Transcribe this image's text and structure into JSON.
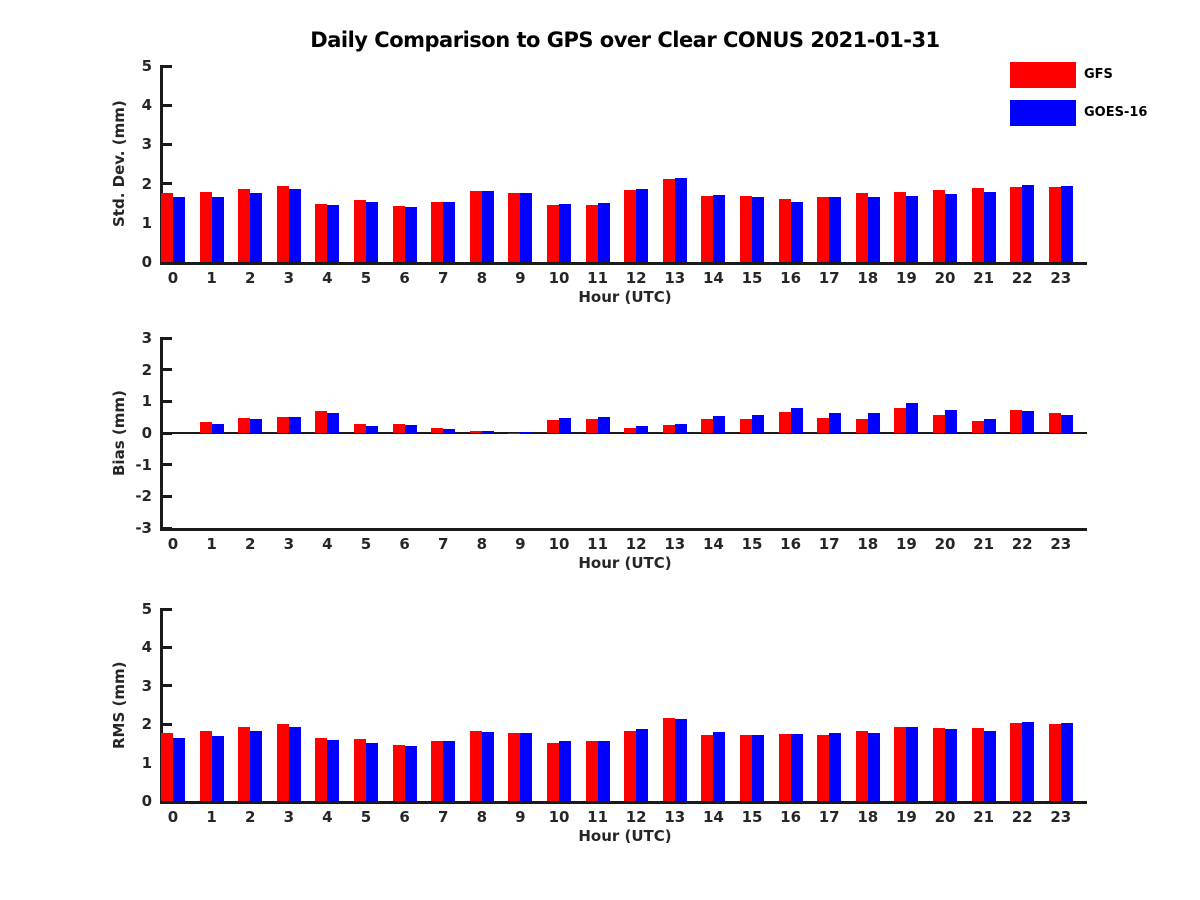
{
  "title": "Daily Comparison to GPS over Clear CONUS 2021-01-31",
  "legend": {
    "items": [
      {
        "label": "GFS",
        "color": "#ff0000"
      },
      {
        "label": "GOES-16",
        "color": "#0000ff"
      }
    ]
  },
  "chart_data": [
    {
      "type": "bar",
      "name": "stddev",
      "title": "Daily Comparison to GPS over Clear CONUS 2021-01-31",
      "xlabel": "Hour (UTC)",
      "ylabel": "Std. Dev. (mm)",
      "ylim": [
        0,
        5
      ],
      "yticks": [
        5,
        4,
        3,
        2,
        1,
        0
      ],
      "grid": false,
      "legend_position": "upper-right-outside",
      "categories": [
        "0",
        "1",
        "2",
        "3",
        "4",
        "5",
        "6",
        "7",
        "8",
        "9",
        "10",
        "11",
        "12",
        "13",
        "14",
        "15",
        "16",
        "17",
        "18",
        "19",
        "20",
        "21",
        "22",
        "23"
      ],
      "series": [
        {
          "name": "GFS",
          "color": "#ff0000",
          "values": [
            1.75,
            1.78,
            1.85,
            1.93,
            1.47,
            1.59,
            1.42,
            1.54,
            1.82,
            1.76,
            1.45,
            1.46,
            1.83,
            2.13,
            1.68,
            1.68,
            1.6,
            1.67,
            1.75,
            1.78,
            1.83,
            1.89,
            1.92,
            1.92
          ]
        },
        {
          "name": "GOES-16",
          "color": "#0000ff",
          "values": [
            1.65,
            1.65,
            1.76,
            1.87,
            1.45,
            1.52,
            1.4,
            1.54,
            1.82,
            1.76,
            1.47,
            1.5,
            1.87,
            2.14,
            1.71,
            1.65,
            1.52,
            1.65,
            1.66,
            1.69,
            1.74,
            1.78,
            1.96,
            1.94
          ]
        }
      ]
    },
    {
      "type": "bar",
      "name": "bias",
      "xlabel": "Hour (UTC)",
      "ylabel": "Bias (mm)",
      "ylim": [
        -3,
        3
      ],
      "yticks": [
        3,
        2,
        1,
        0,
        -1,
        -2,
        -3
      ],
      "grid": false,
      "zero_line": true,
      "categories": [
        "0",
        "1",
        "2",
        "3",
        "4",
        "5",
        "6",
        "7",
        "8",
        "9",
        "10",
        "11",
        "12",
        "13",
        "14",
        "15",
        "16",
        "17",
        "18",
        "19",
        "20",
        "21",
        "22",
        "23"
      ],
      "series": [
        {
          "name": "GFS",
          "color": "#ff0000",
          "values": [
            0.0,
            0.35,
            0.47,
            0.49,
            0.7,
            0.27,
            0.28,
            0.15,
            0.05,
            0.01,
            0.42,
            0.45,
            0.16,
            0.24,
            0.45,
            0.44,
            0.66,
            0.46,
            0.43,
            0.8,
            0.58,
            0.37,
            0.72,
            0.62
          ]
        },
        {
          "name": "GOES-16",
          "color": "#0000ff",
          "values": [
            0.0,
            0.3,
            0.44,
            0.5,
            0.63,
            0.22,
            0.24,
            0.12,
            0.06,
            0.02,
            0.47,
            0.52,
            0.22,
            0.29,
            0.54,
            0.57,
            0.8,
            0.64,
            0.63,
            0.95,
            0.74,
            0.44,
            0.68,
            0.56
          ]
        }
      ]
    },
    {
      "type": "bar",
      "name": "rms",
      "xlabel": "Hour (UTC)",
      "ylabel": "RMS (mm)",
      "ylim": [
        0,
        5
      ],
      "yticks": [
        5,
        4,
        3,
        2,
        1,
        0
      ],
      "grid": false,
      "categories": [
        "0",
        "1",
        "2",
        "3",
        "4",
        "5",
        "6",
        "7",
        "8",
        "9",
        "10",
        "11",
        "12",
        "13",
        "14",
        "15",
        "16",
        "17",
        "18",
        "19",
        "20",
        "21",
        "22",
        "23"
      ],
      "series": [
        {
          "name": "GFS",
          "color": "#ff0000",
          "values": [
            1.76,
            1.81,
            1.94,
            2.01,
            1.65,
            1.62,
            1.45,
            1.56,
            1.83,
            1.77,
            1.52,
            1.55,
            1.83,
            2.15,
            1.73,
            1.73,
            1.74,
            1.73,
            1.81,
            1.94,
            1.91,
            1.9,
            2.04,
            2.0
          ]
        },
        {
          "name": "GOES-16",
          "color": "#0000ff",
          "values": [
            1.65,
            1.68,
            1.81,
            1.92,
            1.58,
            1.52,
            1.43,
            1.56,
            1.79,
            1.77,
            1.55,
            1.57,
            1.87,
            2.13,
            1.79,
            1.72,
            1.74,
            1.77,
            1.76,
            1.92,
            1.88,
            1.82,
            2.07,
            2.03
          ]
        }
      ]
    }
  ]
}
